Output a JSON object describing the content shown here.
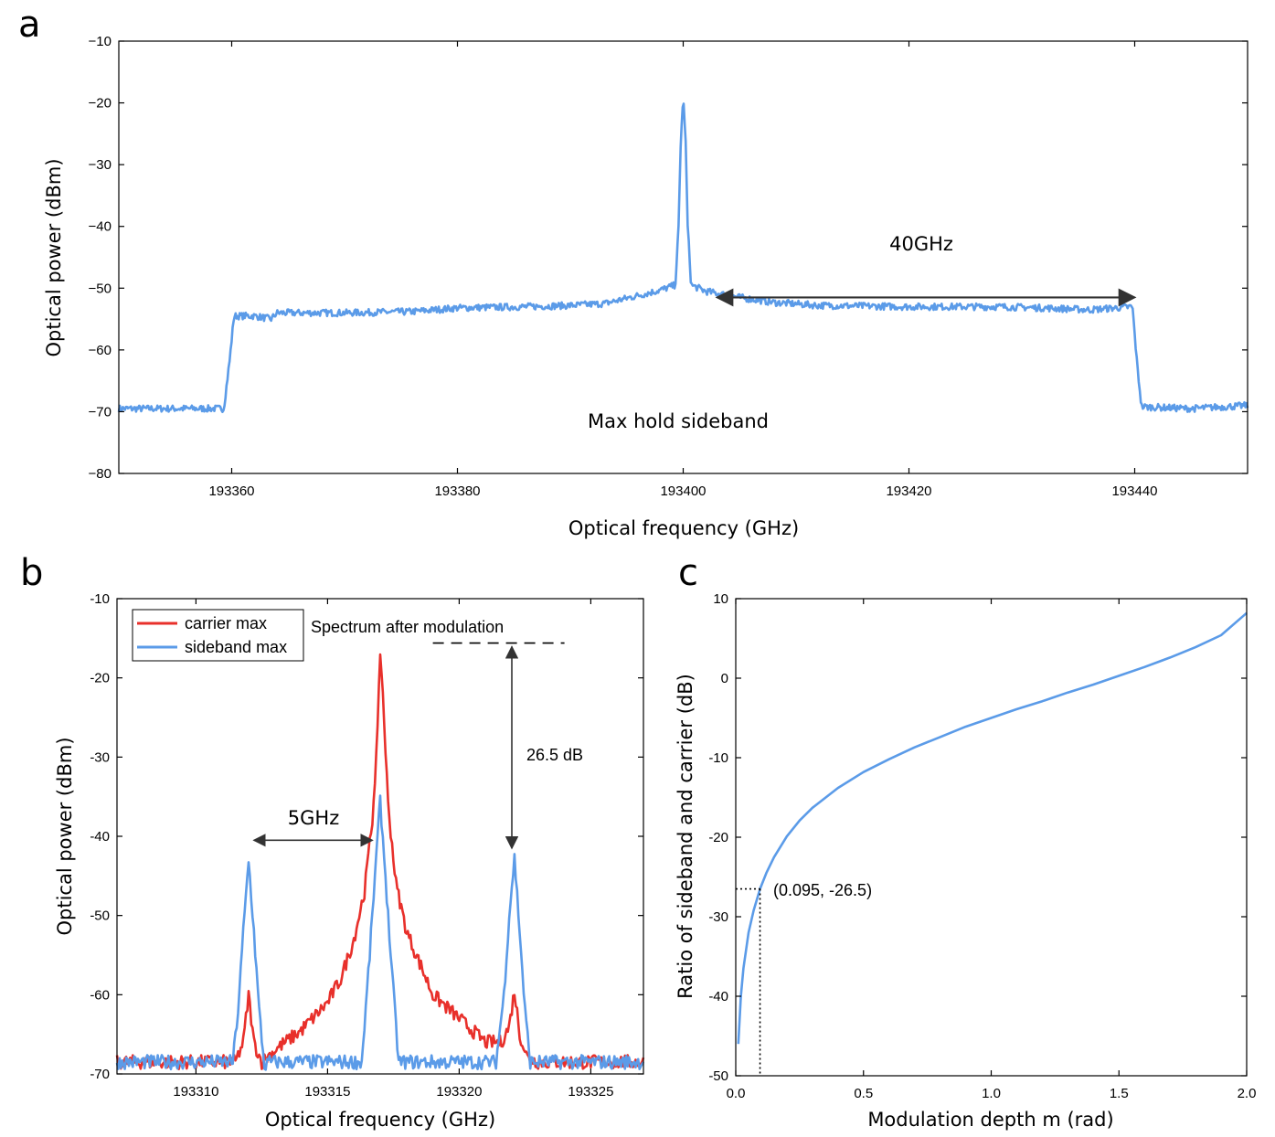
{
  "colors": {
    "blue": "#5b9be8",
    "red": "#e8302b",
    "arrow": "#333333"
  },
  "chart_data": [
    {
      "panel": "a",
      "type": "line",
      "xlabel": "Optical frequency (GHz)",
      "ylabel": "Optical power (dBm)",
      "xlim": [
        193350,
        193450
      ],
      "ylim": [
        -80,
        -10
      ],
      "xticks": [
        193360,
        193380,
        193400,
        193420,
        193440
      ],
      "yticks": [
        -10,
        -20,
        -30,
        -40,
        -50,
        -60,
        -70,
        -80
      ],
      "series": [
        {
          "name": "Max hold sideband",
          "color": "#5b9be8",
          "x": [
            193350,
            193359.3,
            193359.8,
            193360.2,
            193362,
            193363.5,
            193364,
            193370,
            193376,
            193380,
            193386,
            193390,
            193393,
            193396,
            193398,
            193399.3,
            193399.6,
            193399.8,
            193400,
            193400.2,
            193400.4,
            193400.7,
            193402,
            193405,
            193408,
            193412,
            193420,
            193428,
            193432,
            193436,
            193439.8,
            193440.2,
            193440.6,
            193445,
            193450
          ],
          "y": [
            -69.5,
            -69.5,
            -62,
            -54.5,
            -54.5,
            -55,
            -54,
            -54,
            -53.8,
            -53.2,
            -53,
            -52.8,
            -52.5,
            -51.2,
            -50.3,
            -49.5,
            -40,
            -25,
            -19.3,
            -25,
            -40,
            -49.5,
            -50.5,
            -51.5,
            -52.3,
            -52.8,
            -53,
            -53,
            -53.2,
            -53.5,
            -53,
            -62,
            -69.2,
            -69.5,
            -69
          ]
        }
      ],
      "annotations": {
        "span_label": "40GHz",
        "span_from": 193403,
        "span_to": 193440,
        "span_level": -51.5,
        "trace_label": "Max hold sideband"
      }
    },
    {
      "panel": "b",
      "type": "line",
      "xlabel": "Optical frequency (GHz)",
      "ylabel": "Optical power (dBm)",
      "xlim": [
        193307,
        193327
      ],
      "ylim": [
        -70,
        -10
      ],
      "xticks": [
        193310,
        193315,
        193320,
        193325
      ],
      "yticks": [
        -10,
        -20,
        -30,
        -40,
        -50,
        -60,
        -70
      ],
      "legend": {
        "position": "top-left",
        "entries": [
          "carrier max",
          "sideband max"
        ]
      },
      "series": [
        {
          "name": "carrier max",
          "color": "#e8302b",
          "x": [
            193307,
            193311.5,
            193311.8,
            193312,
            193312.2,
            193312.5,
            193313,
            193314,
            193315,
            193315.5,
            193316,
            193316.4,
            193316.7,
            193316.9,
            193317,
            193317.1,
            193317.3,
            193317.6,
            193318,
            193318.5,
            193319,
            193320,
            193321,
            193321.6,
            193321.9,
            193322.1,
            193322.3,
            193322.6,
            193323,
            193327
          ],
          "y": [
            -68.5,
            -68.5,
            -66,
            -60,
            -66,
            -68.5,
            -67,
            -64.5,
            -61,
            -58,
            -53,
            -47,
            -38,
            -27,
            -16.5,
            -22,
            -36,
            -46,
            -52,
            -56,
            -60,
            -63,
            -66,
            -66,
            -64,
            -59.5,
            -65,
            -68,
            -68.5,
            -68.5
          ]
        },
        {
          "name": "sideband max",
          "color": "#5b9be8",
          "x": [
            193307,
            193311.4,
            193311.6,
            193311.8,
            193312,
            193312.2,
            193312.4,
            193312.6,
            193312.8,
            193316.3,
            193316.6,
            193316.8,
            193317,
            193317.2,
            193317.4,
            193317.7,
            193321.4,
            193321.7,
            193321.9,
            193322.1,
            193322.3,
            193322.5,
            193322.7,
            193327
          ],
          "y": [
            -68.5,
            -68.5,
            -62,
            -52,
            -43,
            -52,
            -62,
            -69,
            -68.5,
            -68.5,
            -55,
            -45,
            -35.5,
            -45,
            -55,
            -68.5,
            -68.5,
            -60,
            -50,
            -42.7,
            -52,
            -62,
            -68.5,
            -68.5
          ]
        }
      ],
      "annotations": {
        "title": "Spectrum after modulation",
        "span_label": "5GHz",
        "span_from": 193312.2,
        "span_to": 193316.7,
        "span_level": -40.5,
        "ref_level": -15.6,
        "ref_from": 193319,
        "ref_to": 193324,
        "drop_x": 193322,
        "drop_to": -41.5,
        "drop_label": "26.5 dB"
      }
    },
    {
      "panel": "c",
      "type": "line",
      "xlabel": "Modulation depth m (rad)",
      "ylabel": "Ratio of sideband and carrier (dB)",
      "xlim": [
        0,
        2
      ],
      "ylim": [
        -50,
        10
      ],
      "xticks": [
        0.0,
        0.5,
        1.0,
        1.5,
        2.0
      ],
      "xticklabels": [
        "0.0",
        "0.5",
        "1.0",
        "1.5",
        "2.0"
      ],
      "yticks": [
        10,
        0,
        -10,
        -20,
        -30,
        -40,
        -50
      ],
      "series": [
        {
          "name": "ratio",
          "color": "#5b9be8",
          "x": [
            0.01,
            0.02,
            0.03,
            0.05,
            0.07,
            0.095,
            0.12,
            0.15,
            0.2,
            0.25,
            0.3,
            0.4,
            0.5,
            0.6,
            0.7,
            0.8,
            0.9,
            1.0,
            1.1,
            1.2,
            1.3,
            1.4,
            1.5,
            1.6,
            1.7,
            1.8,
            1.9,
            2.0
          ],
          "y": [
            -46.0,
            -40.0,
            -36.5,
            -32.0,
            -29.2,
            -26.5,
            -24.5,
            -22.5,
            -19.9,
            -17.9,
            -16.3,
            -13.8,
            -11.8,
            -10.2,
            -8.7,
            -7.4,
            -6.1,
            -5.0,
            -3.9,
            -2.9,
            -1.8,
            -0.8,
            0.3,
            1.4,
            2.6,
            3.9,
            5.4,
            8.2
          ]
        }
      ],
      "annotations": {
        "marker_x": 0.095,
        "marker_y": -26.5,
        "label": "(0.095, -26.5)"
      }
    }
  ],
  "panels": {
    "a": "a",
    "b": "b",
    "c": "c"
  }
}
